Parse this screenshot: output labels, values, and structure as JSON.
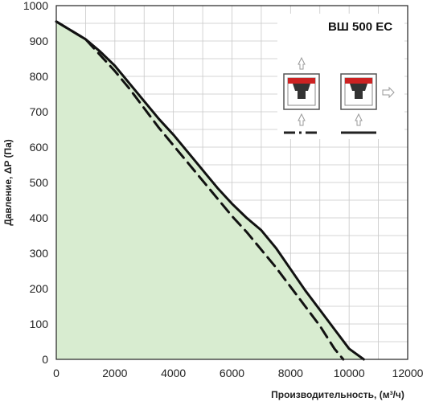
{
  "chart_data": {
    "type": "area",
    "title": "ВШ 500 ЕС",
    "xlabel": "Производительность, (м³/ч)",
    "ylabel": "Давление, ΔP (Па)",
    "xlim": [
      0,
      12000
    ],
    "ylim": [
      0,
      1000
    ],
    "x_ticks": [
      "0",
      "2000",
      "4000",
      "6000",
      "8000",
      "10000",
      "12000"
    ],
    "y_ticks": [
      "0",
      "100",
      "200",
      "300",
      "400",
      "500",
      "600",
      "700",
      "800",
      "900",
      "1000"
    ],
    "grid": true,
    "fill_color": "#d8ecd0",
    "series": [
      {
        "style": "solid",
        "x": [
          0,
          500,
          1000,
          1500,
          2000,
          2500,
          3000,
          3500,
          4000,
          4500,
          5000,
          5500,
          6000,
          6500,
          7000,
          7500,
          8000,
          8500,
          9000,
          9500,
          10000,
          10500
        ],
        "y": [
          955,
          930,
          905,
          870,
          830,
          780,
          730,
          680,
          635,
          585,
          535,
          485,
          440,
          400,
          365,
          315,
          255,
          195,
          140,
          85,
          30,
          0
        ]
      },
      {
        "style": "dashed",
        "x": [
          0,
          500,
          1000,
          1500,
          2000,
          2500,
          3000,
          3500,
          4000,
          4500,
          5000,
          5500,
          6000,
          6500,
          7000,
          7500,
          8000,
          8500,
          9000,
          9500,
          9800
        ],
        "y": [
          955,
          930,
          905,
          860,
          815,
          765,
          710,
          655,
          605,
          555,
          505,
          455,
          405,
          360,
          310,
          260,
          205,
          150,
          95,
          30,
          0
        ]
      }
    ]
  },
  "inset": {
    "left_diagram": "duct-fan-vertical-outlet",
    "right_diagram": "duct-fan-side-outlet",
    "arrow_color": "#999999",
    "fan_body_color": "#333333",
    "panel_color": "#cc2222"
  }
}
